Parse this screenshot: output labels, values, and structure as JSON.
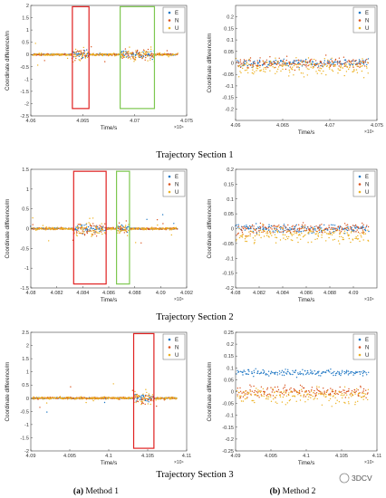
{
  "colors": {
    "E": "#1f77c4",
    "N": "#d9531e",
    "U": "#edb120",
    "highlight_red": "#e02020",
    "highlight_green": "#7ec850"
  },
  "section_captions": [
    "Trajectory Section 1",
    "Trajectory Section 2",
    "Trajectory Section 3"
  ],
  "column_labels": {
    "a": {
      "tag": "(a)",
      "text": " Method 1"
    },
    "b": {
      "tag": "(b)",
      "text": " Method 2"
    }
  },
  "watermark": "3DCV",
  "chart_data": [
    {
      "type": "scatter",
      "id": "s1m1",
      "xlabel": "Time/s",
      "ylabel": "Coordinate difference/m",
      "xlim": [
        4.06,
        4.075
      ],
      "ylim": [
        -2.5,
        2
      ],
      "xticks": [
        4.06,
        4.065,
        4.07,
        4.075
      ],
      "xticklabels": [
        "4.06",
        "4.065",
        "4.07",
        "4.075"
      ],
      "yticks": [
        -2.5,
        -2,
        -1.5,
        -1,
        -0.5,
        0,
        0.5,
        1,
        1.5,
        2
      ],
      "yticklabels": [
        "-2.5",
        "-2",
        "-1.5",
        "-1",
        "-0.5",
        "0",
        "0.5",
        "1",
        "1.5",
        "2"
      ],
      "x_multiplier": "×10⁴",
      "legend": [
        "E",
        "N",
        "U"
      ],
      "legend_position": "top-right",
      "highlight_ranges": [
        {
          "x": [
            4.064,
            4.0656
          ],
          "y": [
            -2.2,
            1.95
          ],
          "color": "red"
        },
        {
          "x": [
            4.0686,
            4.0719
          ],
          "y": [
            -2.2,
            1.95
          ],
          "color": "green"
        }
      ]
    },
    {
      "type": "scatter",
      "id": "s1m2",
      "xlabel": "Time/s",
      "ylabel": "Coordinate difference/m",
      "xlim": [
        4.06,
        4.075
      ],
      "ylim": [
        -0.25,
        0.25
      ],
      "xticks": [
        4.06,
        4.065,
        4.07,
        4.075
      ],
      "xticklabels": [
        "4.06",
        "4.065",
        "4.07",
        "4.075"
      ],
      "yticks": [
        -0.2,
        -0.15,
        -0.1,
        -0.05,
        0,
        0.05,
        0.1,
        0.15,
        0.2
      ],
      "yticklabels": [
        "-0.2",
        "-0.15",
        "-0.1",
        "-0.05",
        "0",
        "0.05",
        "0.1",
        "0.15",
        "0.2"
      ],
      "x_multiplier": "×10⁴",
      "legend": [
        "E",
        "N",
        "U"
      ],
      "legend_position": "top-right"
    },
    {
      "type": "scatter",
      "id": "s2m1",
      "xlabel": "Time/s",
      "ylabel": "Coordinate difference/m",
      "xlim": [
        4.08,
        4.092
      ],
      "ylim": [
        -1.5,
        1.5
      ],
      "xticks": [
        4.08,
        4.082,
        4.084,
        4.086,
        4.088,
        4.09,
        4.092
      ],
      "xticklabels": [
        "4.08",
        "4.082",
        "4.084",
        "4.086",
        "4.088",
        "4.09",
        "4.092"
      ],
      "yticks": [
        -1.5,
        -1,
        -0.5,
        0,
        0.5,
        1,
        1.5
      ],
      "yticklabels": [
        "-1.5",
        "-1",
        "-0.5",
        "0",
        "0.5",
        "1",
        "1.5"
      ],
      "x_multiplier": "×10⁴",
      "legend": [
        "E",
        "N",
        "U"
      ],
      "legend_position": "top-right",
      "highlight_ranges": [
        {
          "x": [
            4.0833,
            4.0858
          ],
          "y": [
            -1.4,
            1.45
          ],
          "color": "red"
        },
        {
          "x": [
            4.0866,
            4.0876
          ],
          "y": [
            -1.4,
            1.45
          ],
          "color": "green"
        }
      ]
    },
    {
      "type": "scatter",
      "id": "s2m2",
      "xlabel": "Time/s",
      "ylabel": "Coordinate difference/m",
      "xlim": [
        4.08,
        4.092
      ],
      "ylim": [
        -0.2,
        0.2
      ],
      "xticks": [
        4.08,
        4.082,
        4.084,
        4.086,
        4.088,
        4.09
      ],
      "xticklabels": [
        "4.08",
        "4.082",
        "4.084",
        "4.086",
        "4.088",
        "4.09"
      ],
      "yticks": [
        -0.2,
        -0.15,
        -0.1,
        -0.05,
        0,
        0.05,
        0.1,
        0.15,
        0.2
      ],
      "yticklabels": [
        "-0.2",
        "-0.15",
        "-0.1",
        "-0.05",
        "0",
        "0.05",
        "0.1",
        "0.15",
        "0.2"
      ],
      "x_multiplier": "×10⁴",
      "legend": [
        "E",
        "N",
        "U"
      ],
      "legend_position": "top-right"
    },
    {
      "type": "scatter",
      "id": "s3m1",
      "xlabel": "Time/s",
      "ylabel": "Coordinate difference/m",
      "xlim": [
        4.09,
        4.11
      ],
      "ylim": [
        -2,
        2.5
      ],
      "xticks": [
        4.09,
        4.095,
        4.1,
        4.105,
        4.11
      ],
      "xticklabels": [
        "4.09",
        "4.095",
        "4.1",
        "4.105",
        "4.11"
      ],
      "yticks": [
        -2,
        -1.5,
        -1,
        -0.5,
        0,
        0.5,
        1,
        1.5,
        2,
        2.5
      ],
      "yticklabels": [
        "-2",
        "-1.5",
        "-1",
        "-0.5",
        "0",
        "0.5",
        "1",
        "1.5",
        "2",
        "2.5"
      ],
      "x_multiplier": "×10⁴",
      "legend": [
        "E",
        "N",
        "U"
      ],
      "legend_position": "top-right",
      "highlight_ranges": [
        {
          "x": [
            4.1032,
            4.1058
          ],
          "y": [
            -1.9,
            2.45
          ],
          "color": "red"
        }
      ]
    },
    {
      "type": "scatter",
      "id": "s3m2",
      "xlabel": "Time/s",
      "ylabel": "Coordinate difference/m",
      "xlim": [
        4.09,
        4.11
      ],
      "ylim": [
        -0.25,
        0.25
      ],
      "xticks": [
        4.09,
        4.095,
        4.1,
        4.105,
        4.11
      ],
      "xticklabels": [
        "4.09",
        "4.095",
        "4.1",
        "4.105",
        "4.11"
      ],
      "yticks": [
        -0.25,
        -0.2,
        -0.15,
        -0.1,
        -0.05,
        0,
        0.05,
        0.1,
        0.15,
        0.2,
        0.25
      ],
      "yticklabels": [
        "-0.25",
        "-0.2",
        "-0.15",
        "-0.1",
        "-0.05",
        "0",
        "0.05",
        "0.1",
        "0.15",
        "0.2",
        "0.25"
      ],
      "x_multiplier": "×10⁴",
      "legend": [
        "E",
        "N",
        "U"
      ],
      "legend_position": "top-right"
    }
  ]
}
